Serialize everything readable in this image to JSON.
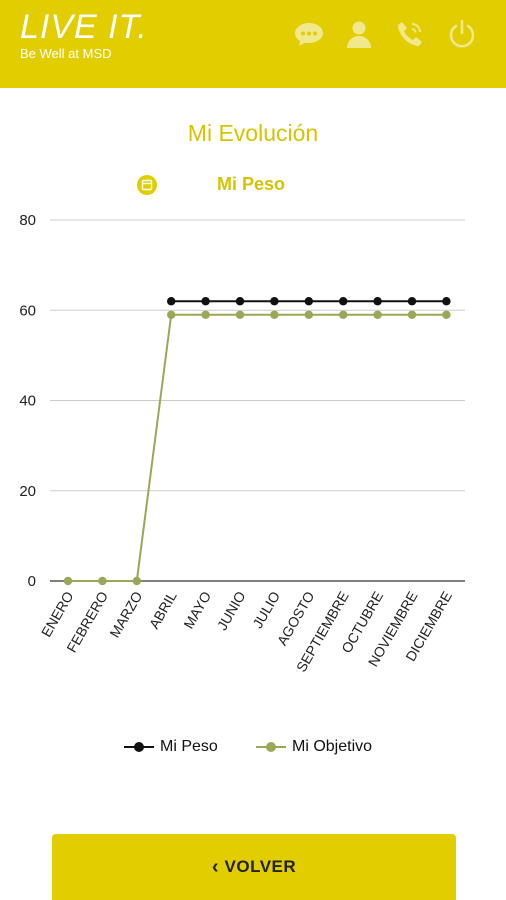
{
  "header": {
    "brand_title": "LIVE IT.",
    "brand_subtitle": "Be Well at MSD",
    "icons": [
      "chat-icon",
      "user-icon",
      "phone-icon",
      "power-icon"
    ],
    "background": "#e1cd00"
  },
  "page": {
    "title": "Mi Evolución",
    "subtitle": "Mi Peso",
    "accent": "#d6c400"
  },
  "chart_data": {
    "type": "line",
    "categories": [
      "ENERO",
      "FEBRERO",
      "MARZO",
      "ABRIL",
      "MAYO",
      "JUNIO",
      "JULIO",
      "AGOSTO",
      "SEPTIEMBRE",
      "OCTUBRE",
      "NOVIEMBRE",
      "DICIEMBRE"
    ],
    "series": [
      {
        "name": "Mi Peso",
        "color": "#111111",
        "values": [
          null,
          null,
          null,
          62,
          62,
          62,
          62,
          62,
          62,
          62,
          62,
          62
        ]
      },
      {
        "name": "Mi Objetivo",
        "color": "#99a857",
        "values": [
          0,
          0,
          0,
          59,
          59,
          59,
          59,
          59,
          59,
          59,
          59,
          59
        ]
      }
    ],
    "ylim": [
      0,
      80
    ],
    "yticks": [
      0,
      20,
      40,
      60,
      80
    ],
    "grid": true,
    "legend_position": "bottom-center",
    "title": "",
    "xlabel": "",
    "ylabel": ""
  },
  "footer": {
    "back_label": "VOLVER"
  }
}
